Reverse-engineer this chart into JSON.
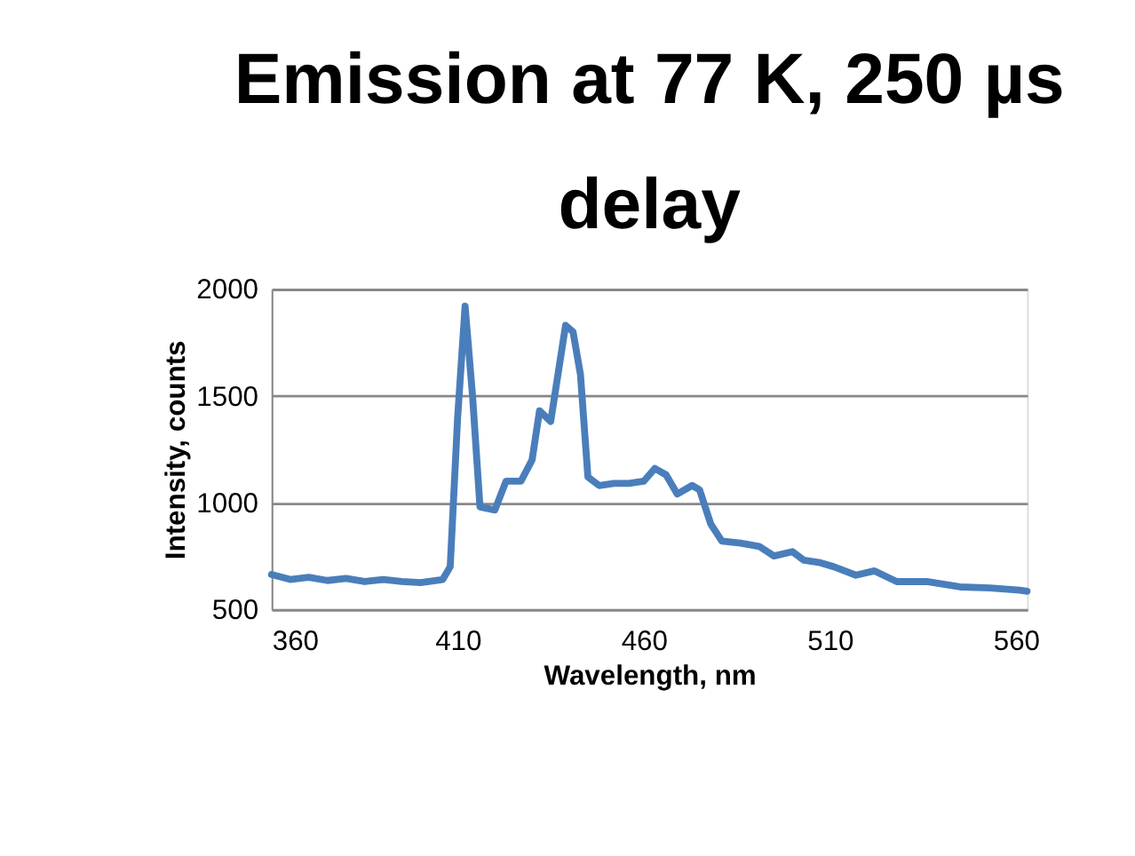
{
  "chart_data": {
    "type": "line",
    "title": "Emission at 77 K, 250 µs delay",
    "xlabel": "Wavelength, nm",
    "ylabel": "Intensity, counts",
    "x": [
      360,
      365,
      370,
      375,
      380,
      385,
      390,
      395,
      400,
      404,
      406,
      408,
      410,
      412,
      414,
      416,
      420,
      423,
      427,
      430,
      432,
      435,
      439,
      441,
      443,
      445,
      448,
      452,
      456,
      460,
      463,
      466,
      469,
      473,
      475,
      478,
      481,
      486,
      491,
      495,
      500,
      503,
      507,
      511,
      517,
      522,
      528,
      536,
      545,
      553,
      561,
      563
    ],
    "series": [
      {
        "color": "#4a7ebb",
        "values": [
          663,
          640,
          650,
          635,
          645,
          630,
          640,
          630,
          625,
          635,
          640,
          700,
          1400,
          1920,
          1500,
          980,
          965,
          1100,
          1100,
          1200,
          1430,
          1380,
          1830,
          1800,
          1600,
          1120,
          1080,
          1090,
          1090,
          1100,
          1160,
          1130,
          1040,
          1080,
          1060,
          900,
          820,
          810,
          795,
          750,
          770,
          730,
          720,
          700,
          660,
          680,
          630,
          630,
          605,
          600,
          590,
          585
        ]
      }
    ],
    "xlim": [
      360,
      563
    ],
    "ylim": [
      500,
      2000
    ],
    "xticks": [
      360,
      410,
      460,
      510,
      560
    ],
    "yticks": [
      500,
      1000,
      1500,
      2000
    ],
    "grid": "y",
    "legend": false,
    "marker": "none",
    "line_style": "solid"
  }
}
